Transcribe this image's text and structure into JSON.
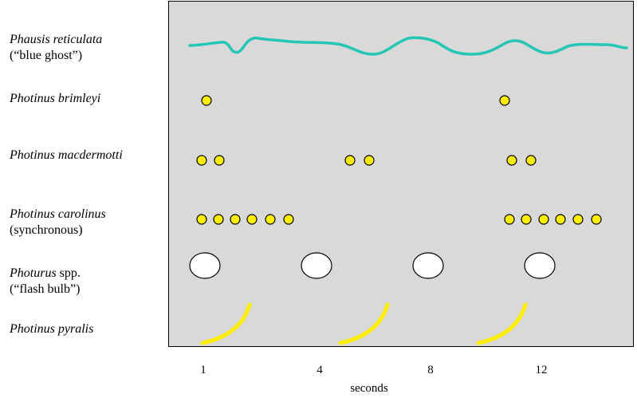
{
  "species": [
    {
      "name": "Phausis reticulata",
      "note": "(“blue ghost”)"
    },
    {
      "name": "Photinus brimleyi",
      "note": ""
    },
    {
      "name": "Photinus macdermotti",
      "note": ""
    },
    {
      "name": "Photinus carolinus",
      "note": "(synchronous)"
    },
    {
      "name": "Photurus",
      "name_suffix": " spp.",
      "note": "(“flash bulb”)"
    },
    {
      "name": "Photinus pyralis",
      "note": ""
    }
  ],
  "x_ticks": [
    "1",
    "4",
    "8",
    "12"
  ],
  "x_label": "seconds",
  "colors": {
    "panel": "#d9d9d9",
    "glow_line": "#26c6b4",
    "flash_dot": "#ffee00",
    "flash_outline": "#000000",
    "flash_bulb": "#ffffff",
    "pyralis_stroke": "#ffee00"
  },
  "flash_patterns": {
    "photinus_brimleyi": [
      1,
      11
    ],
    "photinus_macdermotti": [
      1,
      1.7,
      6,
      6.7,
      11,
      11.7
    ],
    "photinus_carolinus": [
      1,
      1.6,
      2.2,
      2.8,
      3.4,
      4.0,
      11.4,
      12.0,
      12.6,
      13.2,
      13.8,
      14.4
    ],
    "photurus_spp": [
      1,
      5,
      9,
      13
    ],
    "photinus_pyralis_flash_starts": [
      1,
      6,
      11
    ]
  }
}
